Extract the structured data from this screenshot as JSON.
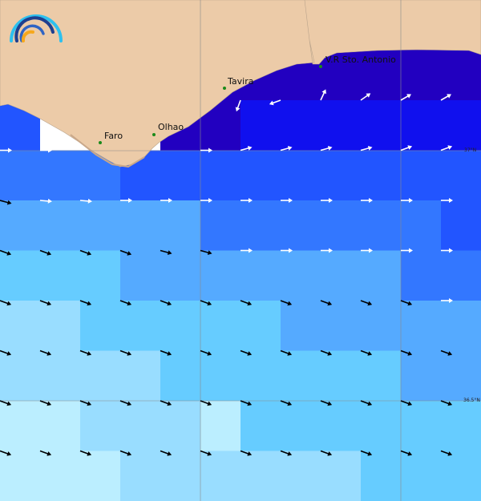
{
  "cities": [
    {
      "name": "Faro"
    },
    {
      "name": "Olhao"
    },
    {
      "name": "Tavira"
    },
    {
      "name": "V.R Sto. Antonio"
    }
  ],
  "latitude_labels": [
    "37°N",
    "36.5°N"
  ],
  "colors": {
    "land": "#eccba8",
    "no_data": "#ffffff",
    "city_marker": "#1a8a1a",
    "scale": [
      "#2200c0",
      "#1010ee",
      "#2255ff",
      "#3377ff",
      "#55aaff",
      "#66ccff",
      "#99ddff",
      "#bbeeff"
    ]
  },
  "cell_levels": [
    [
      0,
      0,
      0,
      0,
      0,
      0,
      0,
      0,
      0,
      0,
      0,
      0
    ],
    [
      0,
      0,
      0,
      0,
      0,
      0,
      0,
      0,
      0,
      0,
      0,
      0
    ],
    [
      2,
      -1,
      -1,
      -1,
      0,
      0,
      1,
      1,
      1,
      1,
      1,
      1
    ],
    [
      3,
      3,
      3,
      2,
      2,
      2,
      2,
      2,
      2,
      2,
      2,
      2
    ],
    [
      4,
      4,
      4,
      4,
      4,
      3,
      3,
      3,
      3,
      3,
      3,
      2
    ],
    [
      5,
      5,
      5,
      4,
      4,
      4,
      4,
      4,
      4,
      4,
      3,
      3
    ],
    [
      6,
      6,
      5,
      5,
      5,
      5,
      5,
      4,
      4,
      4,
      4,
      4
    ],
    [
      6,
      6,
      6,
      6,
      5,
      5,
      5,
      5,
      5,
      5,
      4,
      4
    ],
    [
      7,
      7,
      6,
      6,
      6,
      7,
      5,
      5,
      5,
      5,
      5,
      5
    ],
    [
      7,
      7,
      7,
      6,
      6,
      6,
      6,
      6,
      6,
      5,
      5,
      5
    ]
  ],
  "arrows": [
    {
      "row": 2,
      "dirs": [
        null,
        null,
        null,
        null,
        null,
        null,
        110,
        160,
        -65,
        -35,
        -30,
        -30
      ],
      "colors": [
        "w",
        "w",
        "w",
        "w",
        "w",
        "w",
        "w",
        "w",
        "w",
        "w",
        "w",
        "w"
      ]
    },
    {
      "row": 3,
      "dirs": [
        0,
        0,
        null,
        null,
        null,
        0,
        -15,
        -15,
        -15,
        -15,
        -20,
        -20
      ],
      "colors": [
        "w",
        "w",
        "w",
        "w",
        "w",
        "w",
        "w",
        "w",
        "w",
        "w",
        "w",
        "w"
      ]
    },
    {
      "row": 4,
      "dirs": [
        15,
        5,
        5,
        0,
        0,
        0,
        0,
        0,
        0,
        0,
        0,
        0
      ],
      "colors": [
        "k",
        "w",
        "w",
        "w",
        "w",
        "w",
        "w",
        "w",
        "w",
        "w",
        "w",
        "w"
      ]
    },
    {
      "row": 5,
      "dirs": [
        20,
        20,
        20,
        20,
        15,
        15,
        0,
        0,
        0,
        0,
        0,
        0
      ],
      "colors": [
        "k",
        "k",
        "k",
        "k",
        "k",
        "k",
        "w",
        "w",
        "w",
        "w",
        "w",
        "w"
      ]
    },
    {
      "row": 6,
      "dirs": [
        20,
        20,
        20,
        20,
        20,
        20,
        20,
        20,
        20,
        20,
        20,
        0
      ],
      "colors": [
        "k",
        "k",
        "k",
        "k",
        "k",
        "k",
        "k",
        "k",
        "k",
        "k",
        "k",
        "w"
      ]
    },
    {
      "row": 7,
      "dirs": [
        20,
        20,
        20,
        20,
        20,
        20,
        20,
        20,
        20,
        20,
        20,
        20
      ],
      "colors": [
        "k",
        "k",
        "k",
        "k",
        "k",
        "k",
        "k",
        "k",
        "k",
        "k",
        "k",
        "k"
      ]
    },
    {
      "row": 8,
      "dirs": [
        20,
        20,
        20,
        20,
        20,
        20,
        20,
        20,
        20,
        20,
        20,
        20
      ],
      "colors": [
        "k",
        "k",
        "k",
        "k",
        "k",
        "k",
        "k",
        "k",
        "k",
        "k",
        "k",
        "k"
      ]
    },
    {
      "row": 9,
      "dirs": [
        20,
        20,
        20,
        20,
        20,
        20,
        20,
        20,
        20,
        20,
        20,
        20
      ],
      "colors": [
        "k",
        "k",
        "k",
        "k",
        "k",
        "k",
        "k",
        "k",
        "k",
        "k",
        "k",
        "k"
      ]
    }
  ]
}
